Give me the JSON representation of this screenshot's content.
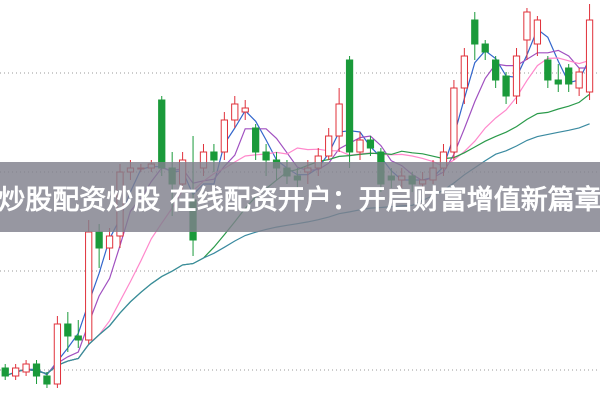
{
  "banner": {
    "title": "炒股配资炒股 在线配资开户：开启财富增值新篇章"
  },
  "chart_data": {
    "type": "candlestick",
    "grid": true,
    "ylim": [
      0,
      100
    ],
    "colors": {
      "up": "#e0303a",
      "down": "#1a9a3a",
      "ma": [
        "#3366cc",
        "#a050c0",
        "#ff88cc",
        "#2a9a4a",
        "#3a8aa0"
      ],
      "grid": "#999999",
      "banner": "#80808c"
    },
    "candles": [
      [
        8,
        6,
        9,
        5
      ],
      [
        6,
        8,
        9,
        5
      ],
      [
        7,
        9,
        10,
        6
      ],
      [
        9,
        6,
        10,
        4
      ],
      [
        6,
        4,
        7,
        3
      ],
      [
        4,
        19,
        21,
        3
      ],
      [
        19,
        16,
        22,
        12
      ],
      [
        16,
        15,
        20,
        13
      ],
      [
        15,
        42,
        45,
        14
      ],
      [
        42,
        38,
        44,
        33
      ],
      [
        38,
        41,
        43,
        35
      ],
      [
        41,
        57,
        59,
        38
      ],
      [
        57,
        58,
        60,
        55
      ],
      [
        58,
        58,
        59,
        57
      ],
      [
        58,
        59,
        60,
        57
      ],
      [
        75,
        58,
        76,
        56
      ],
      [
        58,
        54,
        62,
        46
      ],
      [
        54,
        60,
        62,
        52
      ],
      [
        50,
        40,
        66,
        36
      ],
      [
        58,
        62,
        64,
        56
      ],
      [
        62,
        60,
        64,
        57
      ],
      [
        62,
        70,
        72,
        60
      ],
      [
        70,
        74,
        76,
        68
      ],
      [
        72,
        73,
        75,
        70
      ],
      [
        68,
        62,
        69,
        60
      ],
      [
        62,
        60,
        64,
        56
      ],
      [
        60,
        58,
        62,
        55
      ],
      [
        58,
        56,
        60,
        54
      ],
      [
        56,
        55,
        58,
        53
      ],
      [
        57,
        58,
        60,
        54
      ],
      [
        58,
        61,
        63,
        56
      ],
      [
        61,
        66,
        68,
        60
      ],
      [
        66,
        74,
        78,
        62
      ],
      [
        85,
        62,
        86,
        58
      ],
      [
        62,
        65,
        67,
        60
      ],
      [
        65,
        63,
        66,
        61
      ],
      [
        62,
        54,
        63,
        52
      ],
      [
        56,
        55,
        58,
        53
      ],
      [
        55,
        56,
        58,
        53
      ],
      [
        56,
        54,
        57,
        52
      ],
      [
        54,
        55,
        57,
        53
      ],
      [
        55,
        58,
        60,
        54
      ],
      [
        58,
        62,
        64,
        56
      ],
      [
        62,
        78,
        80,
        60
      ],
      [
        78,
        86,
        88,
        74
      ],
      [
        95,
        89,
        97,
        85
      ],
      [
        89,
        87,
        90,
        85
      ],
      [
        85,
        80,
        86,
        78
      ],
      [
        81,
        76,
        82,
        74
      ],
      [
        76,
        86,
        88,
        74
      ],
      [
        90,
        97,
        98,
        85
      ],
      [
        89,
        95,
        96,
        86
      ],
      [
        85,
        80,
        86,
        78
      ],
      [
        80,
        79,
        84,
        77
      ],
      [
        83,
        79,
        84,
        77
      ],
      [
        78,
        82,
        83,
        76
      ],
      [
        77,
        95,
        99,
        75
      ]
    ]
  }
}
